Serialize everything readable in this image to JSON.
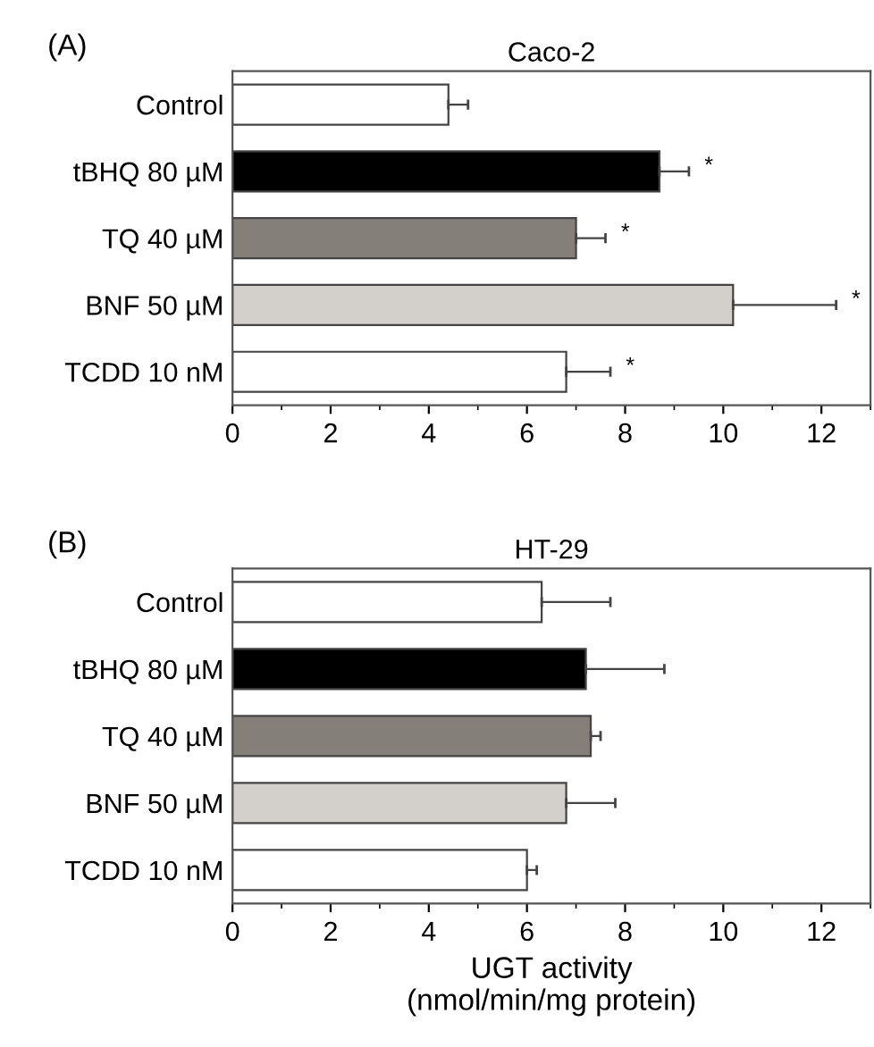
{
  "chart_data": [
    {
      "type": "bar",
      "orientation": "horizontal",
      "title": "Caco-2",
      "categories": [
        "Control",
        "tBHQ 80 µM",
        "TQ 40 µM",
        "BNF 50 µM",
        "TCDD 10 nM"
      ],
      "values": [
        4.4,
        8.7,
        7.0,
        10.2,
        6.8
      ],
      "errors": [
        [
          4.4,
          4.8
        ],
        [
          8.7,
          9.3
        ],
        [
          7.0,
          7.6
        ],
        [
          10.2,
          12.3
        ],
        [
          6.8,
          7.7
        ]
      ],
      "colors": [
        "#ffffff",
        "#000000",
        "#857f7a",
        "#d3cfcb",
        "#ffffff"
      ],
      "xlim": [
        0,
        13
      ],
      "xticks": [
        0,
        2,
        4,
        6,
        8,
        10,
        12
      ],
      "grid": false,
      "legend": false,
      "annotations": [
        "(A)",
        "*",
        "*",
        "*",
        "*"
      ]
    },
    {
      "type": "bar",
      "orientation": "horizontal",
      "title": "HT-29",
      "xlabel": "UGT activity\n(nmol/min/mg protein)",
      "categories": [
        "Control",
        "tBHQ 80 µM",
        "TQ 40 µM",
        "BNF 50 µM",
        "TCDD 10 nM"
      ],
      "values": [
        6.3,
        7.2,
        7.3,
        6.8,
        6.0
      ],
      "errors": [
        [
          6.3,
          7.7
        ],
        [
          7.2,
          8.8
        ],
        [
          7.3,
          7.5
        ],
        [
          6.8,
          7.8
        ],
        [
          6.0,
          6.2
        ]
      ],
      "colors": [
        "#ffffff",
        "#000000",
        "#857f7a",
        "#d3cfcb",
        "#ffffff"
      ],
      "xlim": [
        0,
        13
      ],
      "xticks": [
        0,
        2,
        4,
        6,
        8,
        10,
        12
      ],
      "grid": false,
      "legend": false,
      "annotations": [
        "(B)"
      ]
    }
  ]
}
